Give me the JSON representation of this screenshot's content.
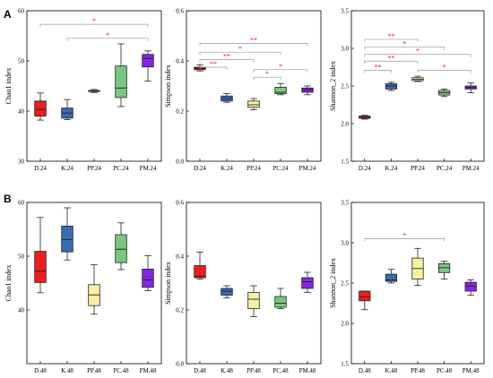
{
  "panel_labels": {
    "A": "A",
    "B": "B"
  },
  "box_colors": [
    "#ee1c1c",
    "#3a6bb5",
    "#f7f0a2",
    "#78c87d",
    "#8a22e6"
  ],
  "bracket_color": "#999999",
  "star_color": "#e0241b",
  "chart_data": [
    {
      "type": "box",
      "panel": "A",
      "ylabel": "Chao1 index",
      "categories": [
        "D.24",
        "K.24",
        "PP.24",
        "PC.24",
        "PM.24"
      ],
      "ylim": [
        30,
        60
      ],
      "yticks": [
        30,
        40,
        50,
        60
      ],
      "ytick_labels": [
        "30",
        "40",
        "50",
        "60"
      ],
      "boxes": [
        {
          "min": 38.2,
          "q1": 39,
          "median": 40.3,
          "q3": 42,
          "max": 43.6
        },
        {
          "min": 38.3,
          "q1": 38.6,
          "median": 39.6,
          "q3": 40.6,
          "max": 42.3
        },
        {
          "min": 43.7,
          "q1": 43.9,
          "median": 44.0,
          "q3": 44.1,
          "max": 44.3
        },
        {
          "min": 40.9,
          "q1": 42.7,
          "median": 44.6,
          "q3": 49.0,
          "max": 53.4
        },
        {
          "min": 46.0,
          "q1": 48.8,
          "median": 50.5,
          "q3": 51.3,
          "max": 52.0
        }
      ],
      "brackets": [
        {
          "from": 0,
          "to": 4,
          "y": 57.3,
          "label": "*"
        },
        {
          "from": 1,
          "to": 4,
          "y": 54.5,
          "label": "*"
        }
      ]
    },
    {
      "type": "box",
      "panel": "A",
      "ylabel": "Simpson index",
      "categories": [
        "D.24",
        "K.24",
        "PP.24",
        "PC.24",
        "PM.24"
      ],
      "ylim": [
        0,
        0.6
      ],
      "yticks": [
        0,
        0.2,
        0.4,
        0.6
      ],
      "ytick_labels": [
        "0.0",
        "0.2",
        "0.4",
        "0.6"
      ],
      "boxes": [
        {
          "min": 0.36,
          "q1": 0.365,
          "median": 0.37,
          "q3": 0.375,
          "max": 0.385
        },
        {
          "min": 0.235,
          "q1": 0.24,
          "median": 0.25,
          "q3": 0.26,
          "max": 0.27
        },
        {
          "min": 0.205,
          "q1": 0.215,
          "median": 0.225,
          "q3": 0.24,
          "max": 0.25
        },
        {
          "min": 0.265,
          "q1": 0.27,
          "median": 0.275,
          "q3": 0.295,
          "max": 0.31
        },
        {
          "min": 0.265,
          "q1": 0.275,
          "median": 0.285,
          "q3": 0.292,
          "max": 0.3
        }
      ],
      "brackets": [
        {
          "from": 0,
          "to": 4,
          "y": 0.47,
          "label": "**"
        },
        {
          "from": 0,
          "to": 3,
          "y": 0.435,
          "label": "*"
        },
        {
          "from": 0,
          "to": 2,
          "y": 0.405,
          "label": "**"
        },
        {
          "from": 0,
          "to": 1,
          "y": 0.375,
          "label": "**"
        },
        {
          "from": 2,
          "to": 4,
          "y": 0.365,
          "label": "*"
        },
        {
          "from": 2,
          "to": 3,
          "y": 0.335,
          "label": "*"
        }
      ]
    },
    {
      "type": "box",
      "panel": "A",
      "ylabel": "Shannon_2 index",
      "categories": [
        "D.24",
        "K.24",
        "PP.24",
        "PC.24",
        "PM.24"
      ],
      "ylim": [
        1.5,
        3.5
      ],
      "yticks": [
        1.5,
        2.0,
        2.5,
        3.0,
        3.5
      ],
      "ytick_labels": [
        "1.5",
        "2.0",
        "2.5",
        "3.0",
        "3.5"
      ],
      "boxes": [
        {
          "min": 2.06,
          "q1": 2.07,
          "median": 2.09,
          "q3": 2.1,
          "max": 2.11
        },
        {
          "min": 2.44,
          "q1": 2.46,
          "median": 2.5,
          "q3": 2.53,
          "max": 2.55
        },
        {
          "min": 2.56,
          "q1": 2.57,
          "median": 2.59,
          "q3": 2.61,
          "max": 2.63
        },
        {
          "min": 2.36,
          "q1": 2.38,
          "median": 2.41,
          "q3": 2.44,
          "max": 2.46
        },
        {
          "min": 2.41,
          "q1": 2.46,
          "median": 2.48,
          "q3": 2.5,
          "max": 2.54
        }
      ],
      "brackets": [
        {
          "from": 0,
          "to": 2,
          "y": 3.12,
          "label": "**"
        },
        {
          "from": 0,
          "to": 3,
          "y": 3.02,
          "label": "*"
        },
        {
          "from": 0,
          "to": 4,
          "y": 2.92,
          "label": "*"
        },
        {
          "from": 0,
          "to": 2,
          "y": 2.83,
          "label": "**"
        },
        {
          "from": 0,
          "to": 1,
          "y": 2.71,
          "label": "**"
        },
        {
          "from": 2,
          "to": 4,
          "y": 2.71,
          "label": "*"
        }
      ]
    },
    {
      "type": "box",
      "panel": "B",
      "ylabel": "Chao1 index",
      "categories": [
        "D.48",
        "K.48",
        "PP.48",
        "PC.48",
        "PM.48"
      ],
      "ylim": [
        30,
        60
      ],
      "yticks": [
        40,
        50,
        60
      ],
      "ytick_labels": [
        "40",
        "50",
        "60"
      ],
      "boxes": [
        {
          "min": 43.2,
          "q1": 45.1,
          "median": 47.2,
          "q3": 50.9,
          "max": 57.2
        },
        {
          "min": 49.3,
          "q1": 50.8,
          "median": 53.1,
          "q3": 55.6,
          "max": 59.0
        },
        {
          "min": 39.2,
          "q1": 40.8,
          "median": 42.8,
          "q3": 44.7,
          "max": 48.4
        },
        {
          "min": 47.5,
          "q1": 48.8,
          "median": 51.3,
          "q3": 54.0,
          "max": 56.2
        },
        {
          "min": 43.6,
          "q1": 44.2,
          "median": 45.6,
          "q3": 47.6,
          "max": 50.1
        }
      ],
      "brackets": []
    },
    {
      "type": "box",
      "panel": "B",
      "ylabel": "Simpson index",
      "categories": [
        "D.48",
        "K.48",
        "PP.48",
        "PC.48",
        "PM.48"
      ],
      "ylim": [
        0,
        0.6
      ],
      "yticks": [
        0,
        0.2,
        0.4,
        0.6
      ],
      "ytick_labels": [
        "0.0",
        "0.2",
        "0.4",
        "0.6"
      ],
      "boxes": [
        {
          "min": 0.315,
          "q1": 0.32,
          "median": 0.325,
          "q3": 0.365,
          "max": 0.415
        },
        {
          "min": 0.245,
          "q1": 0.255,
          "median": 0.27,
          "q3": 0.28,
          "max": 0.29
        },
        {
          "min": 0.175,
          "q1": 0.205,
          "median": 0.24,
          "q3": 0.265,
          "max": 0.29
        },
        {
          "min": 0.205,
          "q1": 0.21,
          "median": 0.225,
          "q3": 0.25,
          "max": 0.28
        },
        {
          "min": 0.265,
          "q1": 0.28,
          "median": 0.305,
          "q3": 0.32,
          "max": 0.34
        }
      ],
      "brackets": []
    },
    {
      "type": "box",
      "panel": "B",
      "ylabel": "Shannon_2 index",
      "categories": [
        "D.48",
        "K.48",
        "PP.48",
        "PC.48",
        "PM.48"
      ],
      "ylim": [
        1.5,
        3.5
      ],
      "yticks": [
        1.5,
        2.0,
        2.5,
        3.0,
        3.5
      ],
      "ytick_labels": [
        "1.5",
        "2.0",
        "2.5",
        "3.0",
        "3.5"
      ],
      "boxes": [
        {
          "min": 2.17,
          "q1": 2.28,
          "median": 2.33,
          "q3": 2.4,
          "max": 2.4
        },
        {
          "min": 2.5,
          "q1": 2.52,
          "median": 2.54,
          "q3": 2.61,
          "max": 2.67
        },
        {
          "min": 2.47,
          "q1": 2.55,
          "median": 2.68,
          "q3": 2.81,
          "max": 2.93
        },
        {
          "min": 2.55,
          "q1": 2.63,
          "median": 2.69,
          "q3": 2.74,
          "max": 2.77
        },
        {
          "min": 2.35,
          "q1": 2.4,
          "median": 2.46,
          "q3": 2.51,
          "max": 2.54
        }
      ],
      "brackets": [
        {
          "from": 0,
          "to": 3,
          "y": 3.05,
          "label": "*"
        }
      ]
    }
  ]
}
